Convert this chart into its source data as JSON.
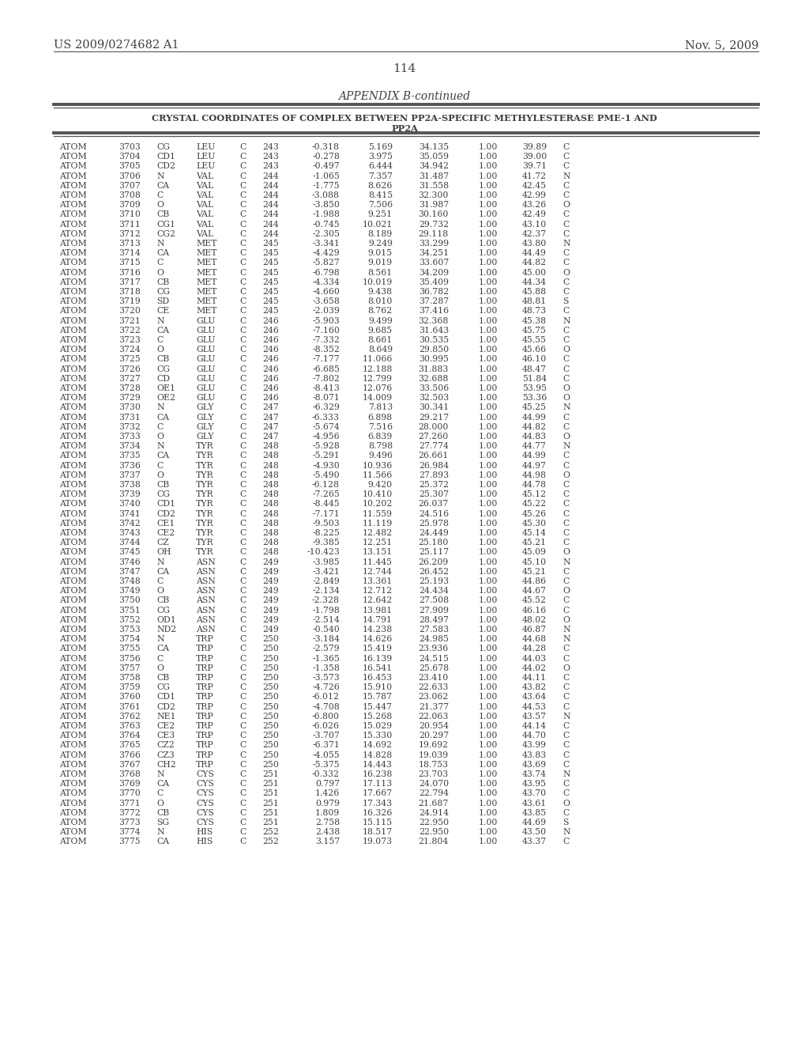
{
  "patent_number": "US 2009/0274682 A1",
  "date": "Nov. 5, 2009",
  "page_number": "114",
  "appendix_title": "APPENDIX B-continued",
  "table_header_line1": "CRYSTAL COORDINATES OF COMPLEX BETWEEN PP2A-SPECIFIC METHYLESTERASE PME-1 AND",
  "table_header_line2": "PP2A",
  "rows": [
    [
      "ATOM",
      "3703",
      "CG",
      "LEU",
      "C",
      "243",
      "-0.318",
      "5.169",
      "34.135",
      "1.00",
      "39.89",
      "C"
    ],
    [
      "ATOM",
      "3704",
      "CD1",
      "LEU",
      "C",
      "243",
      "-0.278",
      "3.975",
      "35.059",
      "1.00",
      "39.00",
      "C"
    ],
    [
      "ATOM",
      "3705",
      "CD2",
      "LEU",
      "C",
      "243",
      "-0.497",
      "6.444",
      "34.942",
      "1.00",
      "39.71",
      "C"
    ],
    [
      "ATOM",
      "3706",
      "N",
      "VAL",
      "C",
      "244",
      "-1.065",
      "7.357",
      "31.487",
      "1.00",
      "41.72",
      "N"
    ],
    [
      "ATOM",
      "3707",
      "CA",
      "VAL",
      "C",
      "244",
      "-1.775",
      "8.626",
      "31.558",
      "1.00",
      "42.45",
      "C"
    ],
    [
      "ATOM",
      "3708",
      "C",
      "VAL",
      "C",
      "244",
      "-3.088",
      "8.415",
      "32.300",
      "1.00",
      "42.99",
      "C"
    ],
    [
      "ATOM",
      "3709",
      "O",
      "VAL",
      "C",
      "244",
      "-3.850",
      "7.506",
      "31.987",
      "1.00",
      "43.26",
      "O"
    ],
    [
      "ATOM",
      "3710",
      "CB",
      "VAL",
      "C",
      "244",
      "-1.988",
      "9.251",
      "30.160",
      "1.00",
      "42.49",
      "C"
    ],
    [
      "ATOM",
      "3711",
      "CG1",
      "VAL",
      "C",
      "244",
      "-0.745",
      "10.021",
      "29.732",
      "1.00",
      "43.10",
      "C"
    ],
    [
      "ATOM",
      "3712",
      "CG2",
      "VAL",
      "C",
      "244",
      "-2.305",
      "8.189",
      "29.118",
      "1.00",
      "42.37",
      "C"
    ],
    [
      "ATOM",
      "3713",
      "N",
      "MET",
      "C",
      "245",
      "-3.341",
      "9.249",
      "33.299",
      "1.00",
      "43.80",
      "N"
    ],
    [
      "ATOM",
      "3714",
      "CA",
      "MET",
      "C",
      "245",
      "-4.429",
      "9.015",
      "34.251",
      "1.00",
      "44.49",
      "C"
    ],
    [
      "ATOM",
      "3715",
      "C",
      "MET",
      "C",
      "245",
      "-5.827",
      "9.019",
      "33.607",
      "1.00",
      "44.82",
      "C"
    ],
    [
      "ATOM",
      "3716",
      "O",
      "MET",
      "C",
      "245",
      "-6.798",
      "8.561",
      "34.209",
      "1.00",
      "45.00",
      "O"
    ],
    [
      "ATOM",
      "3717",
      "CB",
      "MET",
      "C",
      "245",
      "-4.334",
      "10.019",
      "35.409",
      "1.00",
      "44.34",
      "C"
    ],
    [
      "ATOM",
      "3718",
      "CG",
      "MET",
      "C",
      "245",
      "-4.660",
      "9.438",
      "36.782",
      "1.00",
      "45.88",
      "C"
    ],
    [
      "ATOM",
      "3719",
      "SD",
      "MET",
      "C",
      "245",
      "-3.658",
      "8.010",
      "37.287",
      "1.00",
      "48.81",
      "S"
    ],
    [
      "ATOM",
      "3720",
      "CE",
      "MET",
      "C",
      "245",
      "-2.039",
      "8.762",
      "37.416",
      "1.00",
      "48.73",
      "C"
    ],
    [
      "ATOM",
      "3721",
      "N",
      "GLU",
      "C",
      "246",
      "-5.903",
      "9.499",
      "32.368",
      "1.00",
      "45.38",
      "N"
    ],
    [
      "ATOM",
      "3722",
      "CA",
      "GLU",
      "C",
      "246",
      "-7.160",
      "9.685",
      "31.643",
      "1.00",
      "45.75",
      "C"
    ],
    [
      "ATOM",
      "3723",
      "C",
      "GLU",
      "C",
      "246",
      "-7.332",
      "8.661",
      "30.535",
      "1.00",
      "45.55",
      "C"
    ],
    [
      "ATOM",
      "3724",
      "O",
      "GLU",
      "C",
      "246",
      "-8.352",
      "8.649",
      "29.850",
      "1.00",
      "45.66",
      "O"
    ],
    [
      "ATOM",
      "3725",
      "CB",
      "GLU",
      "C",
      "246",
      "-7.177",
      "11.066",
      "30.995",
      "1.00",
      "46.10",
      "C"
    ],
    [
      "ATOM",
      "3726",
      "CG",
      "GLU",
      "C",
      "246",
      "-6.685",
      "12.188",
      "31.883",
      "1.00",
      "48.47",
      "C"
    ],
    [
      "ATOM",
      "3727",
      "CD",
      "GLU",
      "C",
      "246",
      "-7.802",
      "12.799",
      "32.688",
      "1.00",
      "51.84",
      "C"
    ],
    [
      "ATOM",
      "3728",
      "OE1",
      "GLU",
      "C",
      "246",
      "-8.413",
      "12.076",
      "33.506",
      "1.00",
      "53.95",
      "O"
    ],
    [
      "ATOM",
      "3729",
      "OE2",
      "GLU",
      "C",
      "246",
      "-8.071",
      "14.009",
      "32.503",
      "1.00",
      "53.36",
      "O"
    ],
    [
      "ATOM",
      "3730",
      "N",
      "GLY",
      "C",
      "247",
      "-6.329",
      "7.813",
      "30.341",
      "1.00",
      "45.25",
      "N"
    ],
    [
      "ATOM",
      "3731",
      "CA",
      "GLY",
      "C",
      "247",
      "-6.333",
      "6.898",
      "29.217",
      "1.00",
      "44.99",
      "C"
    ],
    [
      "ATOM",
      "3732",
      "C",
      "GLY",
      "C",
      "247",
      "-5.674",
      "7.516",
      "28.000",
      "1.00",
      "44.82",
      "C"
    ],
    [
      "ATOM",
      "3733",
      "O",
      "GLY",
      "C",
      "247",
      "-4.956",
      "6.839",
      "27.260",
      "1.00",
      "44.83",
      "O"
    ],
    [
      "ATOM",
      "3734",
      "N",
      "TYR",
      "C",
      "248",
      "-5.928",
      "8.798",
      "27.774",
      "1.00",
      "44.77",
      "N"
    ],
    [
      "ATOM",
      "3735",
      "CA",
      "TYR",
      "C",
      "248",
      "-5.291",
      "9.496",
      "26.661",
      "1.00",
      "44.99",
      "C"
    ],
    [
      "ATOM",
      "3736",
      "C",
      "TYR",
      "C",
      "248",
      "-4.930",
      "10.936",
      "26.984",
      "1.00",
      "44.97",
      "C"
    ],
    [
      "ATOM",
      "3737",
      "O",
      "TYR",
      "C",
      "248",
      "-5.490",
      "11.566",
      "27.893",
      "1.00",
      "44.98",
      "O"
    ],
    [
      "ATOM",
      "3738",
      "CB",
      "TYR",
      "C",
      "248",
      "-6.128",
      "9.420",
      "25.372",
      "1.00",
      "44.78",
      "C"
    ],
    [
      "ATOM",
      "3739",
      "CG",
      "TYR",
      "C",
      "248",
      "-7.265",
      "10.410",
      "25.307",
      "1.00",
      "45.12",
      "C"
    ],
    [
      "ATOM",
      "3740",
      "CD1",
      "TYR",
      "C",
      "248",
      "-8.445",
      "10.202",
      "26.037",
      "1.00",
      "45.22",
      "C"
    ],
    [
      "ATOM",
      "3741",
      "CD2",
      "TYR",
      "C",
      "248",
      "-7.171",
      "11.559",
      "24.516",
      "1.00",
      "45.26",
      "C"
    ],
    [
      "ATOM",
      "3742",
      "CE1",
      "TYR",
      "C",
      "248",
      "-9.503",
      "11.119",
      "25.978",
      "1.00",
      "45.30",
      "C"
    ],
    [
      "ATOM",
      "3743",
      "CE2",
      "TYR",
      "C",
      "248",
      "-8.225",
      "12.482",
      "24.449",
      "1.00",
      "45.14",
      "C"
    ],
    [
      "ATOM",
      "3744",
      "CZ",
      "TYR",
      "C",
      "248",
      "-9.385",
      "12.251",
      "25.180",
      "1.00",
      "45.21",
      "C"
    ],
    [
      "ATOM",
      "3745",
      "OH",
      "TYR",
      "C",
      "248",
      "-10.423",
      "13.151",
      "25.117",
      "1.00",
      "45.09",
      "O"
    ],
    [
      "ATOM",
      "3746",
      "N",
      "ASN",
      "C",
      "249",
      "-3.985",
      "11.445",
      "26.209",
      "1.00",
      "45.10",
      "N"
    ],
    [
      "ATOM",
      "3747",
      "CA",
      "ASN",
      "C",
      "249",
      "-3.421",
      "12.744",
      "26.452",
      "1.00",
      "45.21",
      "C"
    ],
    [
      "ATOM",
      "3748",
      "C",
      "ASN",
      "C",
      "249",
      "-2.849",
      "13.361",
      "25.193",
      "1.00",
      "44.86",
      "C"
    ],
    [
      "ATOM",
      "3749",
      "O",
      "ASN",
      "C",
      "249",
      "-2.134",
      "12.712",
      "24.434",
      "1.00",
      "44.67",
      "O"
    ],
    [
      "ATOM",
      "3750",
      "CB",
      "ASN",
      "C",
      "249",
      "-2.328",
      "12.642",
      "27.508",
      "1.00",
      "45.52",
      "C"
    ],
    [
      "ATOM",
      "3751",
      "CG",
      "ASN",
      "C",
      "249",
      "-1.798",
      "13.981",
      "27.909",
      "1.00",
      "46.16",
      "C"
    ],
    [
      "ATOM",
      "3752",
      "OD1",
      "ASN",
      "C",
      "249",
      "-2.514",
      "14.791",
      "28.497",
      "1.00",
      "48.02",
      "O"
    ],
    [
      "ATOM",
      "3753",
      "ND2",
      "ASN",
      "C",
      "249",
      "-0.540",
      "14.238",
      "27.583",
      "1.00",
      "46.87",
      "N"
    ],
    [
      "ATOM",
      "3754",
      "N",
      "TRP",
      "C",
      "250",
      "-3.184",
      "14.626",
      "24.985",
      "1.00",
      "44.68",
      "N"
    ],
    [
      "ATOM",
      "3755",
      "CA",
      "TRP",
      "C",
      "250",
      "-2.579",
      "15.419",
      "23.936",
      "1.00",
      "44.28",
      "C"
    ],
    [
      "ATOM",
      "3756",
      "C",
      "TRP",
      "C",
      "250",
      "-1.365",
      "16.139",
      "24.515",
      "1.00",
      "44.03",
      "C"
    ],
    [
      "ATOM",
      "3757",
      "O",
      "TRP",
      "C",
      "250",
      "-1.358",
      "16.541",
      "25.678",
      "1.00",
      "44.02",
      "O"
    ],
    [
      "ATOM",
      "3758",
      "CB",
      "TRP",
      "C",
      "250",
      "-3.573",
      "16.453",
      "23.410",
      "1.00",
      "44.11",
      "C"
    ],
    [
      "ATOM",
      "3759",
      "CG",
      "TRP",
      "C",
      "250",
      "-4.726",
      "15.910",
      "22.633",
      "1.00",
      "43.82",
      "C"
    ],
    [
      "ATOM",
      "3760",
      "CD1",
      "TRP",
      "C",
      "250",
      "-6.012",
      "15.787",
      "23.062",
      "1.00",
      "43.64",
      "C"
    ],
    [
      "ATOM",
      "3761",
      "CD2",
      "TRP",
      "C",
      "250",
      "-4.708",
      "15.447",
      "21.377",
      "1.00",
      "44.53",
      "C"
    ],
    [
      "ATOM",
      "3762",
      "NE1",
      "TRP",
      "C",
      "250",
      "-6.800",
      "15.268",
      "22.063",
      "1.00",
      "43.57",
      "N"
    ],
    [
      "ATOM",
      "3763",
      "CE2",
      "TRP",
      "C",
      "250",
      "-6.026",
      "15.029",
      "20.954",
      "1.00",
      "44.14",
      "C"
    ],
    [
      "ATOM",
      "3764",
      "CE3",
      "TRP",
      "C",
      "250",
      "-3.707",
      "15.330",
      "20.297",
      "1.00",
      "44.70",
      "C"
    ],
    [
      "ATOM",
      "3765",
      "CZ2",
      "TRP",
      "C",
      "250",
      "-6.371",
      "14.692",
      "19.692",
      "1.00",
      "43.99",
      "C"
    ],
    [
      "ATOM",
      "3766",
      "CZ3",
      "TRP",
      "C",
      "250",
      "-4.055",
      "14.828",
      "19.039",
      "1.00",
      "43.83",
      "C"
    ],
    [
      "ATOM",
      "3767",
      "CH2",
      "TRP",
      "C",
      "250",
      "-5.375",
      "14.443",
      "18.753",
      "1.00",
      "43.69",
      "C"
    ],
    [
      "ATOM",
      "3768",
      "N",
      "CYS",
      "C",
      "251",
      "-0.332",
      "16.238",
      "23.703",
      "1.00",
      "43.74",
      "N"
    ],
    [
      "ATOM",
      "3769",
      "CA",
      "CYS",
      "C",
      "251",
      "0.797",
      "17.113",
      "24.070",
      "1.00",
      "43.95",
      "C"
    ],
    [
      "ATOM",
      "3770",
      "C",
      "CYS",
      "C",
      "251",
      "1.426",
      "17.667",
      "22.794",
      "1.00",
      "43.70",
      "C"
    ],
    [
      "ATOM",
      "3771",
      "O",
      "CYS",
      "C",
      "251",
      "0.979",
      "17.343",
      "21.687",
      "1.00",
      "43.61",
      "O"
    ],
    [
      "ATOM",
      "3772",
      "CB",
      "CYS",
      "C",
      "251",
      "1.809",
      "16.326",
      "24.914",
      "1.00",
      "43.85",
      "C"
    ],
    [
      "ATOM",
      "3773",
      "SG",
      "CYS",
      "C",
      "251",
      "2.758",
      "15.115",
      "22.950",
      "1.00",
      "44.69",
      "S"
    ],
    [
      "ATOM",
      "3774",
      "N",
      "HIS",
      "C",
      "252",
      "2.438",
      "18.517",
      "22.950",
      "1.00",
      "43.50",
      "N"
    ],
    [
      "ATOM",
      "3775",
      "CA",
      "HIS",
      "C",
      "252",
      "3.157",
      "19.073",
      "21.804",
      "1.00",
      "43.37",
      "C"
    ]
  ],
  "bg_color": "#ffffff",
  "text_color": "#404040",
  "line_color": "#555555"
}
